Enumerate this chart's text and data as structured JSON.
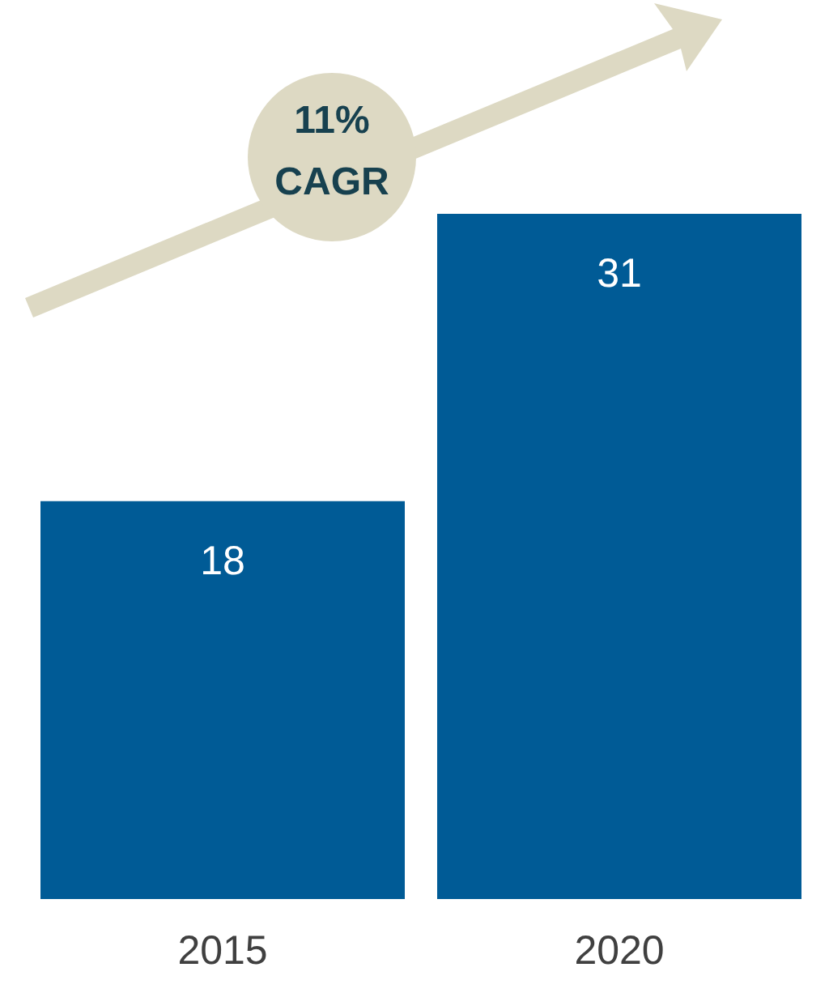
{
  "chart_data": {
    "type": "bar",
    "categories": [
      "2015",
      "2020"
    ],
    "values": [
      18,
      31
    ],
    "color": "#005b96",
    "data_labels": true,
    "annotations": [
      "11%",
      "CAGR"
    ]
  }
}
